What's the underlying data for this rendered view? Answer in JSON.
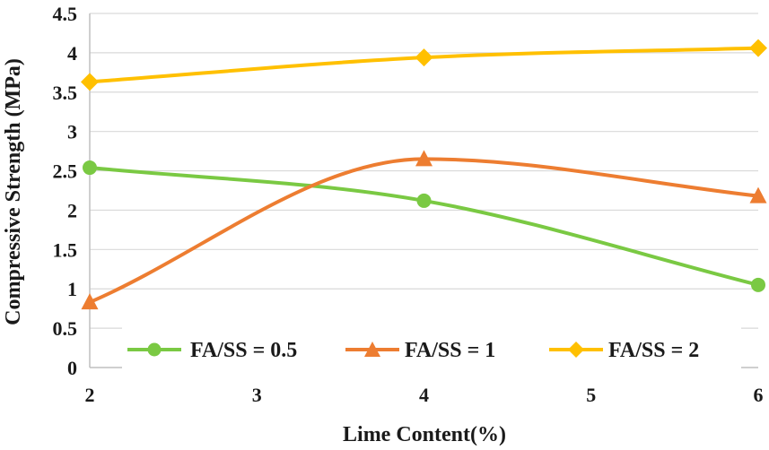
{
  "chart_data": {
    "type": "line",
    "title": "",
    "xlabel": "Lime Content(%)",
    "ylabel": "Compressive Strength (MPa)",
    "xlim": [
      2,
      6
    ],
    "ylim": [
      0,
      4.5
    ],
    "x_ticks": [
      "2",
      "3",
      "4",
      "5",
      "6"
    ],
    "y_ticks": [
      "0",
      "0.5",
      "1",
      "1.5",
      "2",
      "2.5",
      "3",
      "3.5",
      "4",
      "4.5"
    ],
    "grid": "horizontal",
    "legend_position": "bottom",
    "x": [
      2,
      4,
      6
    ],
    "series": [
      {
        "name": "FA/SS = 0.5",
        "values": [
          2.54,
          2.12,
          1.05
        ],
        "color": "#7ac943",
        "marker": "circle"
      },
      {
        "name": "FA/SS = 1",
        "values": [
          0.83,
          2.65,
          2.18
        ],
        "color": "#ed7d31",
        "marker": "triangle"
      },
      {
        "name": "FA/SS = 2",
        "values": [
          3.63,
          3.94,
          4.06
        ],
        "color": "#ffc000",
        "marker": "diamond"
      }
    ]
  }
}
